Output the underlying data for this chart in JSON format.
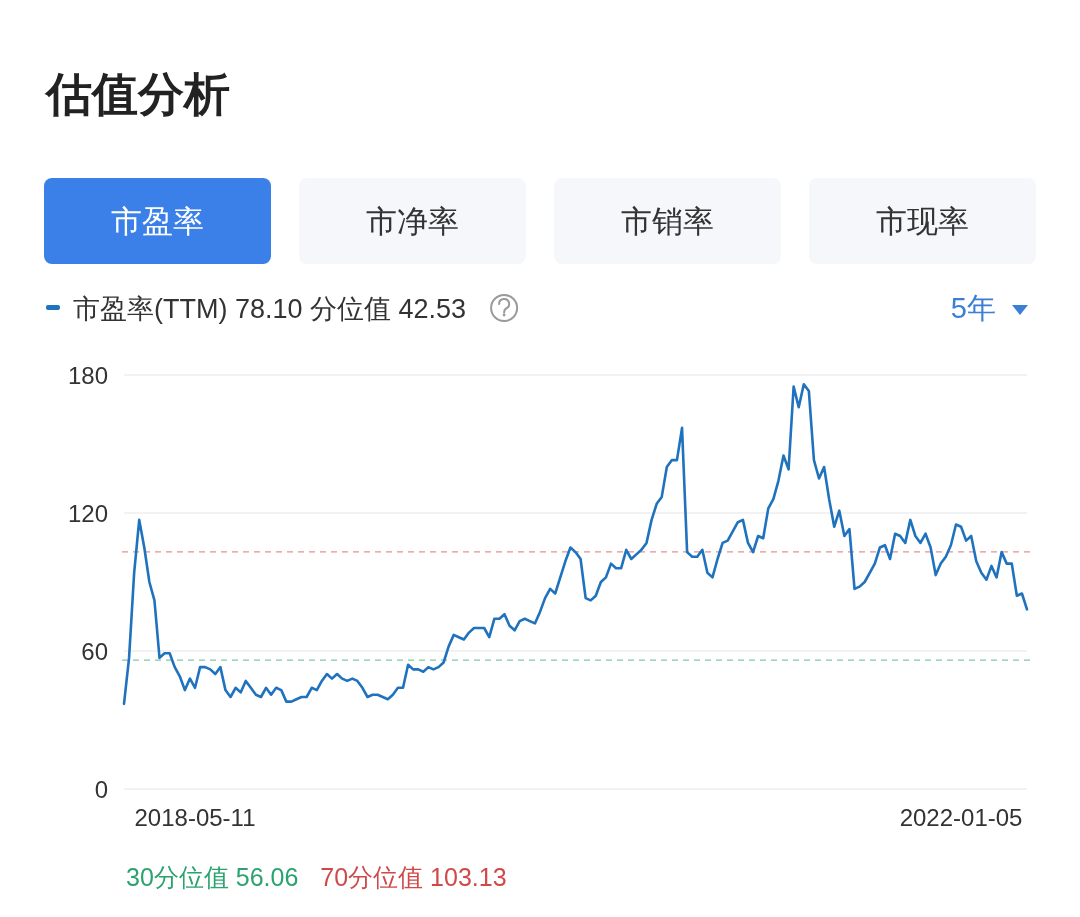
{
  "chart_data": {
    "type": "line",
    "title": "估值分析",
    "annotations": [
      "市盈率",
      "市净率",
      "市销率",
      "市现率",
      "5年"
    ],
    "categories": [
      null,
      null,
      null,
      null,
      null,
      null,
      null,
      null,
      null,
      null,
      null,
      null,
      null,
      null,
      "2018-05-11",
      null,
      null,
      null,
      null,
      null,
      null,
      null,
      null,
      null,
      null,
      null,
      null,
      null,
      null,
      null,
      null,
      null,
      null,
      null,
      null,
      null,
      null,
      null,
      null,
      null,
      null,
      null,
      null,
      null,
      null,
      null,
      null,
      null,
      null,
      null,
      null,
      null,
      null,
      null,
      null,
      null,
      null,
      null,
      null,
      null,
      null,
      null,
      null,
      null,
      null,
      null,
      null,
      null,
      null,
      null,
      null,
      null,
      null,
      null,
      null,
      null,
      null,
      null,
      null,
      null,
      null,
      null,
      null,
      null,
      null,
      null,
      null,
      null,
      null,
      null,
      null,
      null,
      null,
      null,
      null,
      null,
      null,
      null,
      null,
      null,
      null,
      null,
      null,
      null,
      null,
      null,
      null,
      null,
      null,
      null,
      null,
      null,
      null,
      null,
      null,
      null,
      null,
      null,
      null,
      null,
      null,
      null,
      null,
      null,
      null,
      null,
      null,
      null,
      null,
      null,
      null,
      null,
      null,
      null,
      null,
      null,
      null,
      null,
      null,
      null,
      null,
      null,
      null,
      null,
      null,
      null,
      null,
      null,
      null,
      null,
      null,
      null,
      null,
      null,
      null,
      null,
      null,
      null,
      null,
      null,
      null,
      null,
      null,
      null,
      null,
      "2022-01-05",
      null,
      null,
      null,
      null,
      null,
      null,
      null,
      null,
      null,
      null,
      null,
      null,
      null
    ],
    "series": [
      {
        "name": "市盈率(TTM) 78.10 分位值 42.53",
        "color": "#1f72bd",
        "values": [
          37,
          57,
          94,
          117,
          105,
          90,
          82,
          57,
          59,
          59,
          53,
          49,
          43,
          48,
          44,
          53,
          53,
          52,
          50,
          53,
          43,
          40,
          44,
          42,
          47,
          44,
          41,
          40,
          44,
          41,
          44,
          43,
          38,
          38,
          39,
          40,
          40,
          44,
          43,
          47,
          50,
          48,
          50,
          48,
          47,
          48,
          47,
          44,
          40,
          41,
          41,
          40,
          39,
          41,
          44,
          44,
          54,
          52,
          52,
          51,
          53,
          52,
          53,
          55,
          62,
          67,
          66,
          65,
          68,
          70,
          70,
          70,
          66,
          74,
          74,
          76,
          71,
          69,
          73,
          74,
          73,
          72,
          77,
          83,
          87,
          85,
          92,
          99,
          105,
          103,
          100,
          83,
          82,
          84,
          90,
          92,
          98,
          96,
          96,
          104,
          100,
          102,
          104,
          107,
          117,
          124,
          127,
          140,
          143,
          143,
          157,
          103,
          101,
          101,
          104,
          94,
          92,
          100,
          107,
          108,
          112,
          116,
          117,
          107,
          103,
          110,
          109,
          122,
          126,
          134,
          145,
          139,
          175,
          166,
          176,
          173,
          143,
          135,
          140,
          126,
          114,
          121,
          110,
          113,
          87,
          88,
          90,
          94,
          98,
          105,
          106,
          100,
          111,
          110,
          107,
          117,
          110,
          107,
          111,
          105,
          93,
          98,
          101,
          106,
          115,
          114,
          108,
          110,
          99,
          94,
          91,
          97,
          92,
          103,
          98,
          98,
          84,
          85,
          78.1
        ]
      }
    ],
    "ylim": [
      0,
      180
    ],
    "yticks": [
      0,
      60,
      120,
      180
    ],
    "ref_lines": [
      {
        "axis": "y",
        "value": 56.06,
        "label": "30分位值 56.06",
        "color": "#2ba36e",
        "line_style": "dashed"
      },
      {
        "axis": "y",
        "value": 103.13,
        "label": "70分位值 103.13",
        "color": "#d0494a",
        "line_style": "dashed"
      }
    ],
    "grid": "y",
    "legend": "top left"
  }
}
